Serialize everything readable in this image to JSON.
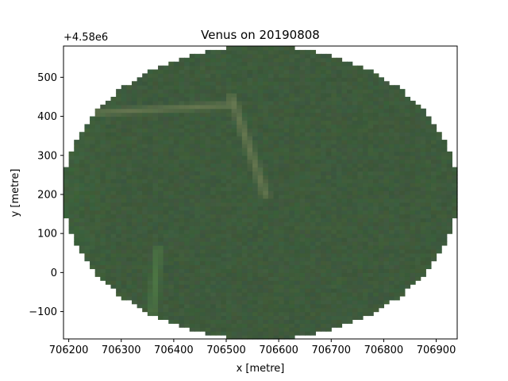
{
  "chart_data": {
    "type": "heatmap",
    "title": "Venus on 20190808",
    "xlabel": "x [metre]",
    "ylabel": "y [metre]",
    "offset_label": "+4.58e6",
    "xlim": [
      706190,
      706940
    ],
    "ylim": [
      -170,
      580
    ],
    "x_ticks": [
      706200,
      706300,
      706400,
      706500,
      706600,
      706700,
      706800,
      706900
    ],
    "x_tick_labels": [
      "706200",
      "706300",
      "706400",
      "706500",
      "706600",
      "706700",
      "706800",
      "706900"
    ],
    "y_ticks": [
      -100,
      0,
      100,
      200,
      300,
      400,
      500
    ],
    "y_tick_labels": [
      "−100",
      "0",
      "100",
      "200",
      "300",
      "400",
      "500"
    ],
    "grid": false,
    "raster": {
      "shape": "ellipse",
      "center": [
        706565,
        205
      ],
      "radius_x": 375,
      "radius_y": 375,
      "pixel_size": 10,
      "base_color": "#3e5a3c",
      "features": [
        {
          "name": "track-horizontal",
          "from": [
            706250,
            410
          ],
          "to": [
            706510,
            430
          ],
          "color": "#6b7a52"
        },
        {
          "name": "track-diagonal",
          "from": [
            706510,
            450
          ],
          "to": [
            706575,
            200
          ],
          "color": "#6b7a52"
        },
        {
          "name": "track-lower",
          "from": [
            706370,
            60
          ],
          "to": [
            706360,
            -100
          ],
          "color": "#4f7a45"
        }
      ]
    }
  }
}
